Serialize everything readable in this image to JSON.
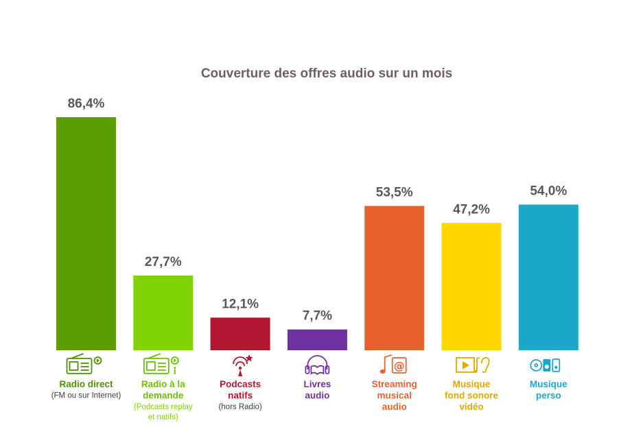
{
  "chart_data": {
    "type": "bar",
    "title": "Couverture des offres audio sur un mois",
    "unit": "%",
    "ylim": [
      0,
      100
    ],
    "grid": false,
    "legend": "none",
    "categories": [
      {
        "lines": [
          "Radio direct"
        ],
        "sub": [
          "(FM ou sur Internet)"
        ],
        "icon": "radio-icon",
        "color": "#5a9e00",
        "label_color": "#4f9000",
        "sub_color": "#3d3d3d"
      },
      {
        "lines": [
          "Radio à la",
          "demande"
        ],
        "sub": [
          "(Podcasts replay",
          "et natifs)"
        ],
        "icon": "radio-replay-icon",
        "color": "#7ed300",
        "label_color": "#6bbf00",
        "sub_color": "#7ed300"
      },
      {
        "lines": [
          "Podcasts",
          "natifs"
        ],
        "sub": [
          "(hors Radio)"
        ],
        "icon": "podcast-icon",
        "color": "#b5162f",
        "label_color": "#b5162f",
        "sub_color": "#3d3d3d"
      },
      {
        "lines": [
          "Livres",
          "audio"
        ],
        "sub": [],
        "icon": "headphones-book-icon",
        "color": "#7030a0",
        "label_color": "#7030a0",
        "sub_color": "#7030a0"
      },
      {
        "lines": [
          "Streaming",
          "musical",
          "audio"
        ],
        "sub": [],
        "icon": "music-at-icon",
        "color": "#e8612c",
        "label_color": "#e8612c",
        "sub_color": "#e8612c"
      },
      {
        "lines": [
          "Musique",
          "fond sonore",
          "vidéo"
        ],
        "sub": [],
        "icon": "video-ear-icon",
        "color": "#ffd600",
        "label_color": "#e0a800",
        "sub_color": "#e0a800"
      },
      {
        "lines": [
          "Musique",
          "perso"
        ],
        "sub": [],
        "icon": "cd-speaker-icon",
        "color": "#1aa7c8",
        "label_color": "#1aa7c8",
        "sub_color": "#1aa7c8"
      }
    ],
    "values": [
      86.4,
      27.7,
      12.1,
      7.7,
      53.5,
      47.2,
      54.0
    ],
    "value_labels": [
      "86,4%",
      "27,7%",
      "12,1%",
      "7,7%",
      "53,5%",
      "47,2%",
      "54,0%"
    ]
  }
}
